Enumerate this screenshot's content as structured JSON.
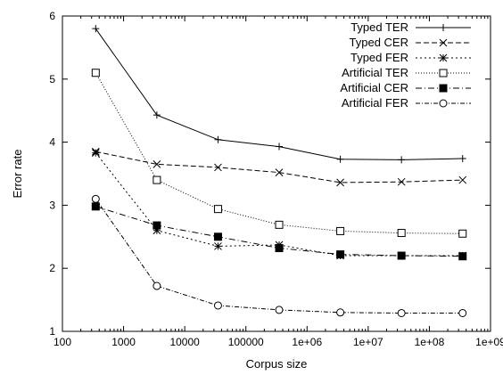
{
  "chart_data": {
    "type": "line",
    "title": "",
    "xlabel": "Corpus size",
    "ylabel": "Error rate",
    "x_scale": "log",
    "xlim": [
      100,
      1000000000
    ],
    "ylim": [
      1,
      6
    ],
    "x_ticks": [
      100,
      1000,
      10000,
      100000,
      1000000,
      10000000,
      100000000,
      1000000000
    ],
    "x_tick_labels": [
      "100",
      "1000",
      "10000",
      "100000",
      "1e+06",
      "1e+07",
      "1e+08",
      "1e+09"
    ],
    "y_ticks": [
      1,
      2,
      3,
      4,
      5,
      6
    ],
    "y_tick_labels": [
      "1",
      "2",
      "3",
      "4",
      "5",
      "6"
    ],
    "grid": false,
    "legend_position": "top-right",
    "x": [
      350,
      3500,
      35000,
      350000,
      3500000,
      35000000,
      350000000
    ],
    "series": [
      {
        "name": "Typed TER",
        "marker": "plus",
        "dash": "",
        "values": [
          5.8,
          4.43,
          4.04,
          3.93,
          3.73,
          3.72,
          3.74
        ]
      },
      {
        "name": "Typed CER",
        "marker": "cross",
        "dash": "6,3",
        "values": [
          3.85,
          3.65,
          3.6,
          3.52,
          3.36,
          3.37,
          3.4
        ]
      },
      {
        "name": "Typed FER",
        "marker": "star",
        "dash": "2,3",
        "values": [
          3.83,
          2.6,
          2.35,
          2.37,
          2.2,
          2.2,
          2.2
        ]
      },
      {
        "name": "Artificial TER",
        "marker": "open-square",
        "dash": "1,2",
        "values": [
          5.1,
          3.4,
          2.94,
          2.69,
          2.59,
          2.56,
          2.55
        ]
      },
      {
        "name": "Artificial CER",
        "marker": "filled-square",
        "dash": "7,3,1,3",
        "values": [
          2.98,
          2.68,
          2.5,
          2.32,
          2.22,
          2.2,
          2.19
        ]
      },
      {
        "name": "Artificial FER",
        "marker": "open-circle",
        "dash": "5,2,1,2",
        "values": [
          3.1,
          1.72,
          1.41,
          1.34,
          1.3,
          1.29,
          1.29
        ]
      }
    ]
  }
}
